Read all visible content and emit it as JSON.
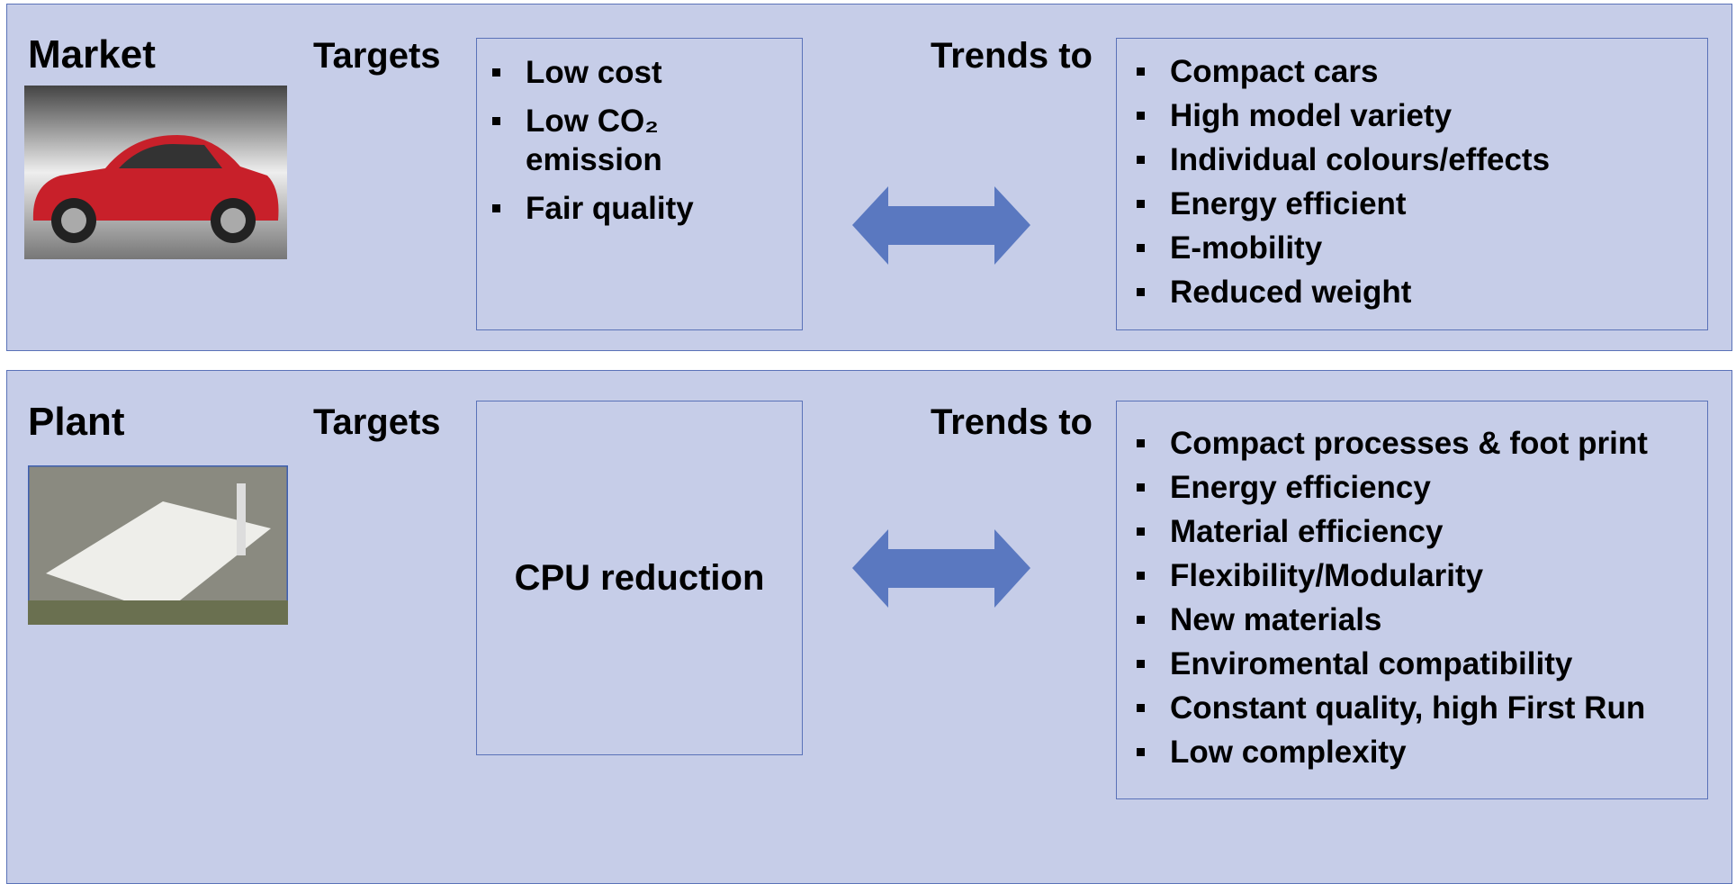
{
  "market": {
    "title": "Market",
    "targets_label": "Targets",
    "targets": [
      "Low cost",
      "Low CO₂ emission",
      "Fair quality"
    ],
    "trends_label": "Trends to",
    "trends": [
      "Compact cars",
      "High model variety",
      "Individual colours/effects",
      "Energy efficient",
      "E-mobility",
      "Reduced weight"
    ]
  },
  "plant": {
    "title": "Plant",
    "targets_label": "Targets",
    "target": "CPU reduction",
    "trends_label": "Trends to",
    "trends": [
      "Compact processes & foot print",
      "Energy efficiency",
      "Material efficiency",
      "Flexibility/Modularity",
      "New materials",
      "Enviromental compatibility",
      "Constant quality, high First Run",
      "Low complexity"
    ]
  }
}
